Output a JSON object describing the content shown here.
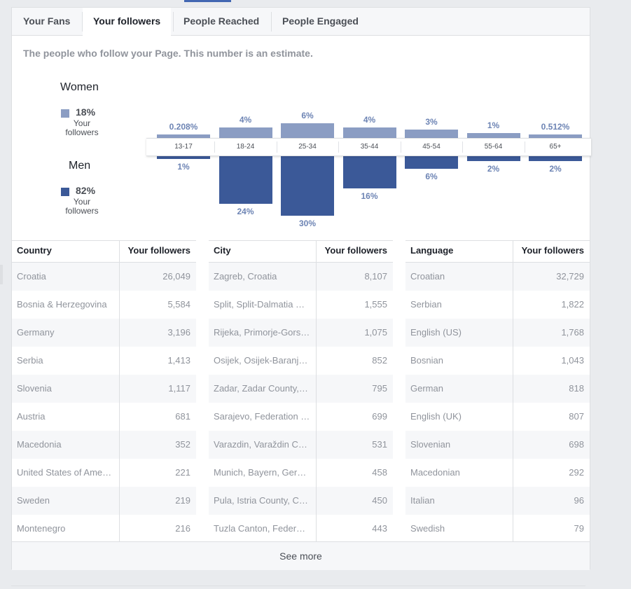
{
  "tabs": [
    {
      "label": "Your Fans"
    },
    {
      "label": "Your followers"
    },
    {
      "label": "People Reached"
    },
    {
      "label": "People Engaged"
    }
  ],
  "subtitle": "The people who follow your Page. This number is an estimate.",
  "gender": {
    "women": {
      "title": "Women",
      "pct": "18%",
      "sub": "Your followers",
      "color": "#8b9dc3"
    },
    "men": {
      "title": "Men",
      "pct": "82%",
      "sub": "Your followers",
      "color": "#3b5998"
    }
  },
  "chart_data": {
    "type": "bar",
    "categories": [
      "13-17",
      "18-24",
      "25-34",
      "35-44",
      "45-54",
      "55-64",
      "65+"
    ],
    "series": [
      {
        "name": "Women",
        "values": [
          0.208,
          4,
          6,
          4,
          3,
          1,
          0.512
        ],
        "labels": [
          "0.208%",
          "4%",
          "6%",
          "4%",
          "3%",
          "1%",
          "0.512%"
        ],
        "color": "#8b9dc3"
      },
      {
        "name": "Men",
        "values": [
          1,
          24,
          30,
          16,
          6,
          2,
          2
        ],
        "labels": [
          "1%",
          "24%",
          "30%",
          "16%",
          "6%",
          "2%",
          "2%"
        ],
        "color": "#3b5998"
      }
    ]
  },
  "tables": [
    {
      "header_left": "Country",
      "header_right": "Your followers",
      "rows": [
        {
          "name": "Croatia",
          "value": "26,049"
        },
        {
          "name": "Bosnia & Herzegovina",
          "value": "5,584"
        },
        {
          "name": "Germany",
          "value": "3,196"
        },
        {
          "name": "Serbia",
          "value": "1,413"
        },
        {
          "name": "Slovenia",
          "value": "1,117"
        },
        {
          "name": "Austria",
          "value": "681"
        },
        {
          "name": "Macedonia",
          "value": "352"
        },
        {
          "name": "United States of America",
          "value": "221"
        },
        {
          "name": "Sweden",
          "value": "219"
        },
        {
          "name": "Montenegro",
          "value": "216"
        }
      ]
    },
    {
      "header_left": "City",
      "header_right": "Your followers",
      "rows": [
        {
          "name": "Zagreb, Croatia",
          "value": "8,107"
        },
        {
          "name": "Split, Split-Dalmatia Co…",
          "value": "1,555"
        },
        {
          "name": "Rijeka, Primorje-Gorski…",
          "value": "1,075"
        },
        {
          "name": "Osijek, Osijek-Baranja …",
          "value": "852"
        },
        {
          "name": "Zadar, Zadar County, C…",
          "value": "795"
        },
        {
          "name": "Sarajevo, Federation of…",
          "value": "699"
        },
        {
          "name": "Varazdin, Varaždin Cou…",
          "value": "531"
        },
        {
          "name": "Munich, Bayern, Germ…",
          "value": "458"
        },
        {
          "name": "Pula, Istria County, Cro…",
          "value": "450"
        },
        {
          "name": "Tuzla Canton, Federati…",
          "value": "443"
        }
      ]
    },
    {
      "header_left": "Language",
      "header_right": "Your followers",
      "rows": [
        {
          "name": "Croatian",
          "value": "32,729"
        },
        {
          "name": "Serbian",
          "value": "1,822"
        },
        {
          "name": "English (US)",
          "value": "1,768"
        },
        {
          "name": "Bosnian",
          "value": "1,043"
        },
        {
          "name": "German",
          "value": "818"
        },
        {
          "name": "English (UK)",
          "value": "807"
        },
        {
          "name": "Slovenian",
          "value": "698"
        },
        {
          "name": "Macedonian",
          "value": "292"
        },
        {
          "name": "Italian",
          "value": "96"
        },
        {
          "name": "Swedish",
          "value": "79"
        }
      ]
    }
  ],
  "see_more": "See more"
}
